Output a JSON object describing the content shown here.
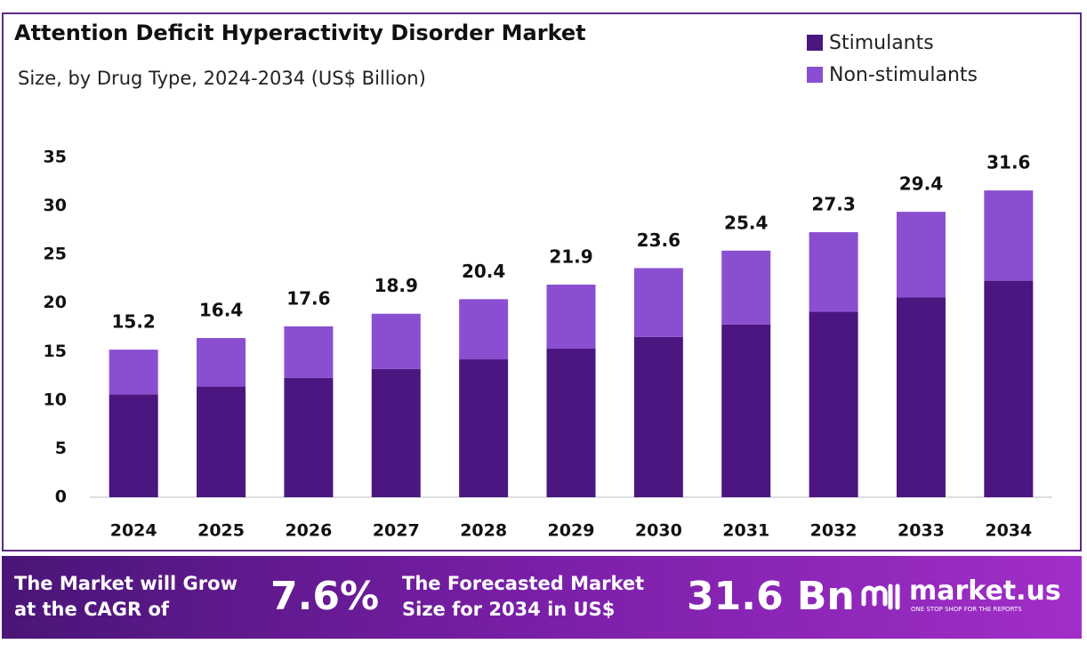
{
  "chart_data": {
    "type": "stacked_bar",
    "title": "Attention Deficit Hyperactivity Disorder Market",
    "subtitle": "Size, by Drug Type, 2024-2034 (US$ Billion)",
    "categories": [
      "2024",
      "2025",
      "2026",
      "2027",
      "2028",
      "2029",
      "2030",
      "2031",
      "2032",
      "2033",
      "2034"
    ],
    "series": [
      {
        "name": "Stimulants",
        "color": "#4b1680",
        "values": [
          10.6,
          11.4,
          12.3,
          13.2,
          14.2,
          15.3,
          16.5,
          17.8,
          19.1,
          20.6,
          22.3
        ]
      },
      {
        "name": "Non-stimulants",
        "color": "#8a4fd0",
        "values": [
          4.6,
          5.0,
          5.3,
          5.7,
          6.2,
          6.6,
          7.1,
          7.6,
          8.2,
          8.8,
          9.3
        ]
      }
    ],
    "totals": [
      15.2,
      16.4,
      17.6,
      18.9,
      20.4,
      21.9,
      23.6,
      25.4,
      27.3,
      29.4,
      31.6
    ],
    "ylim": [
      0,
      35
    ],
    "yticks": [
      0,
      5,
      10,
      15,
      20,
      25,
      30,
      35
    ],
    "grid": false,
    "legend": "top-right"
  },
  "footer": {
    "cagr_text": [
      "The Market will Grow",
      "at the CAGR of"
    ],
    "cagr": "7.6%",
    "forecast_text": [
      "The Forecasted Market",
      "Size for 2034 in US$"
    ],
    "forecast": "31.6 Bn",
    "logo": "market.us",
    "tagline": "ONE STOP SHOP FOR THE REPORTS"
  }
}
